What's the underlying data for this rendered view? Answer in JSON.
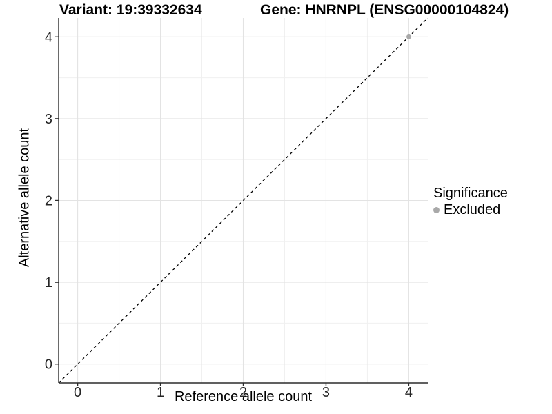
{
  "chart_data": {
    "type": "scatter",
    "title_left": "Variant: 19:39332634",
    "title_right": "Gene: HNRNPL (ENSG00000104824)",
    "xlabel": "Reference allele count",
    "ylabel": "Alternative allele count",
    "xlim": [
      -0.23,
      4.23
    ],
    "ylim": [
      -0.23,
      4.23
    ],
    "xticks": [
      0,
      1,
      2,
      3,
      4
    ],
    "yticks": [
      0,
      1,
      2,
      3,
      4
    ],
    "grid": {
      "major": true,
      "minor": true,
      "major_color": "#e3e3e3",
      "minor_color": "#f0f0f0"
    },
    "axis_color": "#2b2b2b",
    "identity_line": {
      "slope": 1,
      "intercept": 0,
      "style": "dashed",
      "color": "#000000"
    },
    "series": [
      {
        "name": "Excluded",
        "color": "#a9a9a9",
        "points": [
          [
            4,
            4
          ]
        ]
      }
    ],
    "legend": {
      "title": "Significance",
      "position": "right",
      "items": [
        {
          "label": "Excluded",
          "color": "#a9a9a9"
        }
      ]
    }
  }
}
